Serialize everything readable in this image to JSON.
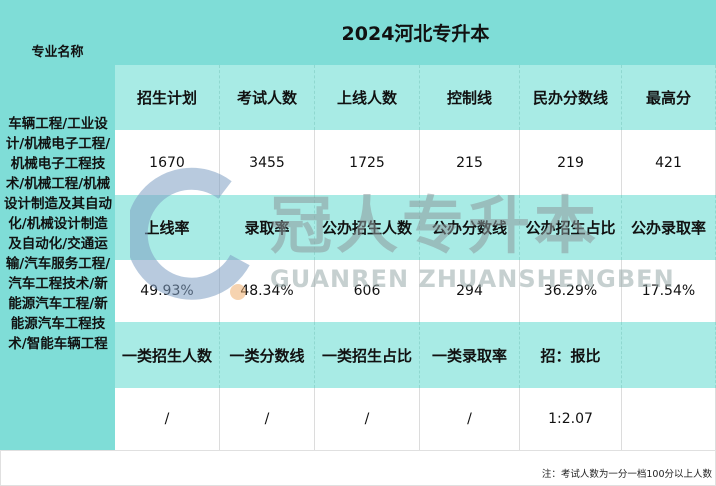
{
  "title": "2024河北专升本",
  "major_header": "专业名称",
  "major_name": "车辆工程/工业设计/机械电子工程/机械电子工程技术/机械工程/机械设计制造及其自动化/机械设计制造及自动化/交通运输/汽车服务工程/汽车工程技术/新能源汽车工程/新能源汽车工程技术/智能车辆工程",
  "rows": [
    {
      "headers": [
        "招生计划",
        "考试人数",
        "上线人数",
        "控制线",
        "民办分数线",
        "最高分"
      ],
      "values": [
        "1670",
        "3455",
        "1725",
        "215",
        "219",
        "421"
      ]
    },
    {
      "headers": [
        "上线率",
        "录取率",
        "公办招生人数",
        "公办分数线",
        "公办招生占比",
        "公办录取率"
      ],
      "values": [
        "49.93%",
        "48.34%",
        "606",
        "294",
        "36.29%",
        "17.54%"
      ]
    },
    {
      "headers": [
        "一类招生人数",
        "一类分数线",
        "一类招生占比",
        "一类录取率",
        "招：报比",
        ""
      ],
      "values": [
        "/",
        "/",
        "/",
        "/",
        "1:2.07",
        ""
      ]
    }
  ],
  "note": "注：考试人数为一分一档100分以上人数",
  "watermark": {
    "text": "冠人专升本",
    "subtext": "GUANREN ZHUANSHENGBEN"
  },
  "colors": {
    "header_teal": "#7fddd7",
    "row_teal": "#a8ebe5"
  }
}
